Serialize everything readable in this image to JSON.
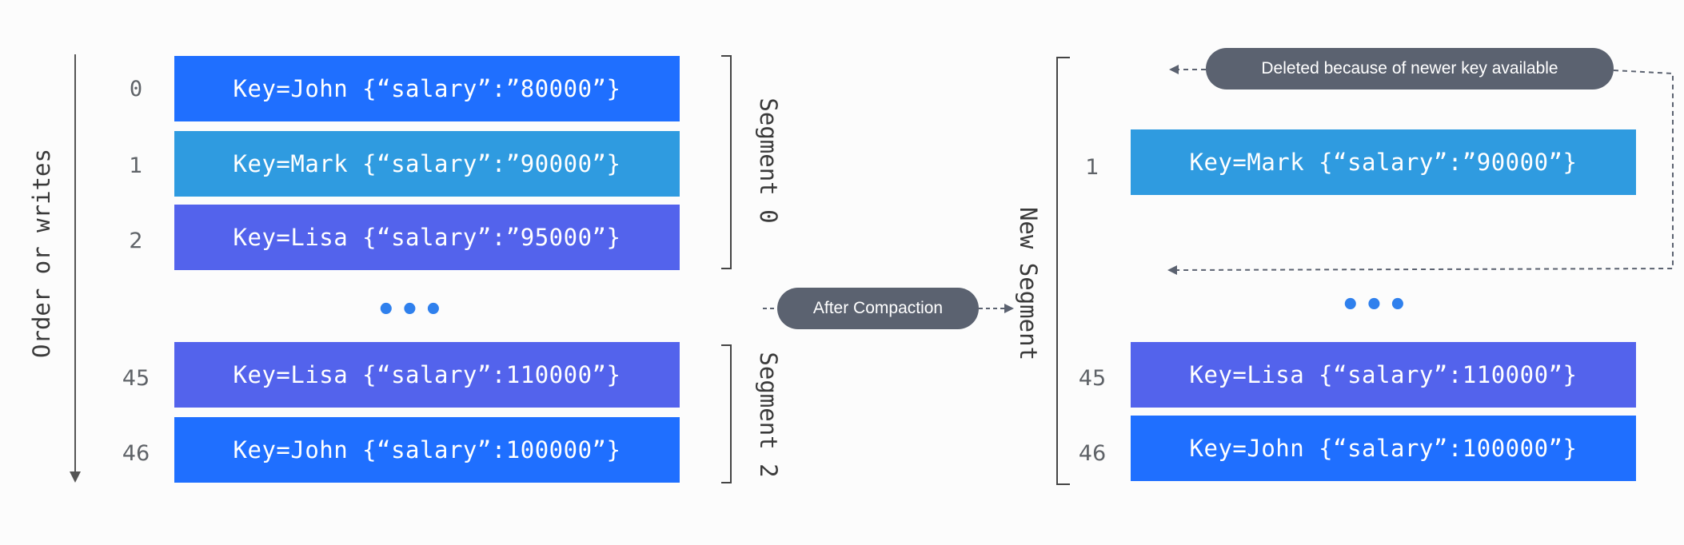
{
  "axis_label": "Order or writes",
  "left": {
    "records": [
      {
        "index": "0",
        "text": "Key=John {“salary”:”80000”}",
        "color": "#1f6fff"
      },
      {
        "index": "1",
        "text": "Key=Mark {“salary”:”90000”}",
        "color": "#2f9be0"
      },
      {
        "index": "2",
        "text": "Key=Lisa {“salary”:”95000”}",
        "color": "#5363ec"
      },
      {
        "index": "45",
        "text": "Key=Lisa {“salary”:110000”}",
        "color": "#5363ec"
      },
      {
        "index": "46",
        "text": "Key=John {“salary”:100000”}",
        "color": "#1f6fff"
      }
    ],
    "ellipsis": "•••",
    "segment_0_label": "Segment 0",
    "segment_2_label": "Segment 2"
  },
  "compaction_label": "After Compaction",
  "right": {
    "new_segment_label": "New Segment",
    "deleted_note": "Deleted because of newer key available",
    "records": [
      {
        "index": "1",
        "text": "Key=Mark {“salary”:”90000”}",
        "color": "#2f9be0"
      },
      {
        "index": "45",
        "text": "Key=Lisa {“salary”:110000”}",
        "color": "#5363ec"
      },
      {
        "index": "46",
        "text": "Key=John {“salary”:100000”}",
        "color": "#1f6fff"
      }
    ],
    "ellipsis": "•••"
  },
  "colors": {
    "blue": "#1f6fff",
    "light_blue": "#2f9be0",
    "indigo": "#5363ec",
    "pill": "#5b6270",
    "line": "#5b6270"
  }
}
